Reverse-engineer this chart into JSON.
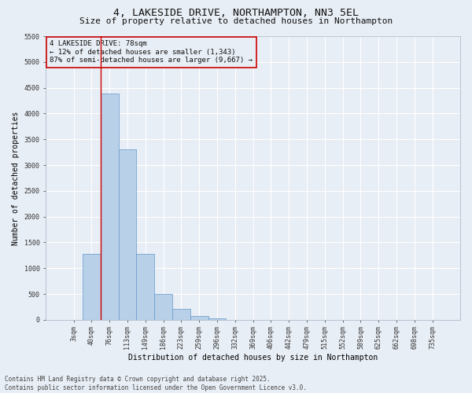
{
  "title": "4, LAKESIDE DRIVE, NORTHAMPTON, NN3 5EL",
  "subtitle": "Size of property relative to detached houses in Northampton",
  "xlabel": "Distribution of detached houses by size in Northampton",
  "ylabel": "Number of detached properties",
  "bar_color": "#b8d0e8",
  "bar_edge_color": "#6699cc",
  "categories": [
    "3sqm",
    "40sqm",
    "76sqm",
    "113sqm",
    "149sqm",
    "186sqm",
    "223sqm",
    "259sqm",
    "296sqm",
    "332sqm",
    "369sqm",
    "406sqm",
    "442sqm",
    "479sqm",
    "515sqm",
    "552sqm",
    "589sqm",
    "625sqm",
    "662sqm",
    "698sqm",
    "735sqm"
  ],
  "values": [
    0,
    1270,
    4380,
    3300,
    1275,
    500,
    215,
    75,
    35,
    0,
    0,
    0,
    0,
    0,
    0,
    0,
    0,
    0,
    0,
    0,
    0
  ],
  "ylim": [
    0,
    5500
  ],
  "yticks": [
    0,
    500,
    1000,
    1500,
    2000,
    2500,
    3000,
    3500,
    4000,
    4500,
    5000,
    5500
  ],
  "property_line_index": 2,
  "property_line_color": "#cc0000",
  "annotation_text": "4 LAKESIDE DRIVE: 78sqm\n← 12% of detached houses are smaller (1,343)\n87% of semi-detached houses are larger (9,667) →",
  "annotation_box_color": "#cc0000",
  "footer_line1": "Contains HM Land Registry data © Crown copyright and database right 2025.",
  "footer_line2": "Contains public sector information licensed under the Open Government Licence v3.0.",
  "background_color": "#e8eef5",
  "grid_color": "#ffffff",
  "title_fontsize": 9.5,
  "subtitle_fontsize": 8,
  "axis_label_fontsize": 7,
  "tick_fontsize": 6,
  "annotation_fontsize": 6.5,
  "footer_fontsize": 5.5
}
